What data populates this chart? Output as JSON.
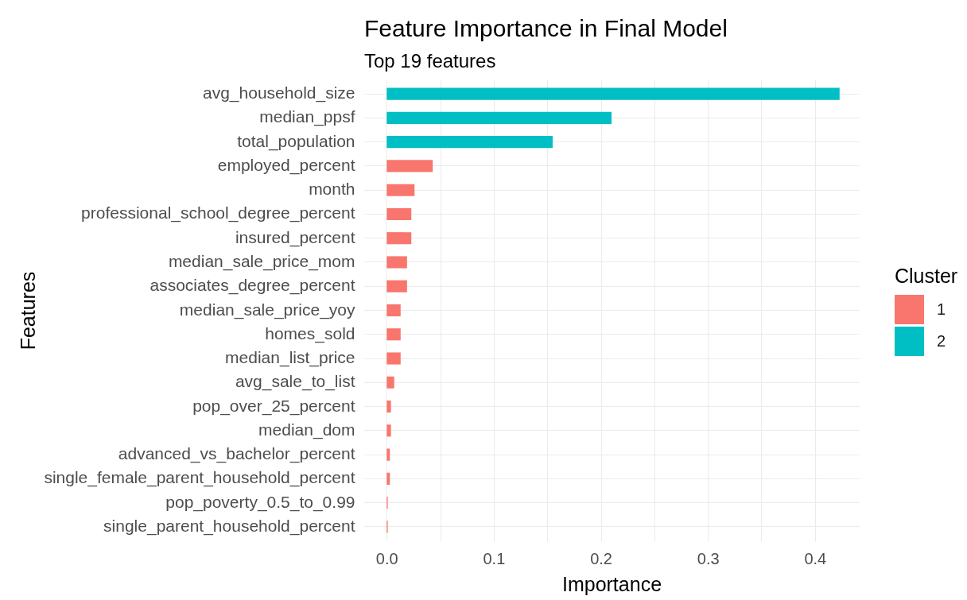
{
  "chart_data": {
    "type": "bar",
    "orientation": "horizontal",
    "title": "Feature Importance in Final Model",
    "subtitle": "Top 19 features",
    "xlabel": "Importance",
    "ylabel": "Features",
    "legend_title": "Cluster",
    "categories": [
      "avg_household_size",
      "median_ppsf",
      "total_population",
      "employed_percent",
      "month",
      "professional_school_degree_percent",
      "insured_percent",
      "median_sale_price_mom",
      "associates_degree_percent",
      "median_sale_price_yoy",
      "homes_sold",
      "median_list_price",
      "avg_sale_to_list",
      "pop_over_25_percent",
      "median_dom",
      "advanced_vs_bachelor_percent",
      "single_female_parent_household_percent",
      "pop_poverty_0.5_to_0.99",
      "single_parent_household_percent"
    ],
    "series": [
      {
        "name": "1",
        "color": "#f8766d",
        "values": [
          null,
          null,
          null,
          0.043,
          0.026,
          0.023,
          0.023,
          0.019,
          0.019,
          0.013,
          0.013,
          0.013,
          0.007,
          0.004,
          0.004,
          0.003,
          0.003,
          0.001,
          0.001
        ]
      },
      {
        "name": "2",
        "color": "#00bfc4",
        "values": [
          0.423,
          0.21,
          0.155,
          null,
          null,
          null,
          null,
          null,
          null,
          null,
          null,
          null,
          null,
          null,
          null,
          null,
          null,
          null,
          null
        ]
      }
    ],
    "xlim": [
      -0.021,
      0.441
    ],
    "xticks": [
      {
        "value": 0,
        "label": "0.0"
      },
      {
        "value": 0.05,
        "label": null
      },
      0.1,
      {
        "value": 0.15,
        "label": null
      },
      0.2,
      {
        "value": 0.25,
        "label": null
      },
      0.3,
      {
        "value": 0.35,
        "label": null
      },
      0.4
    ],
    "grid": true,
    "legend": "right"
  }
}
